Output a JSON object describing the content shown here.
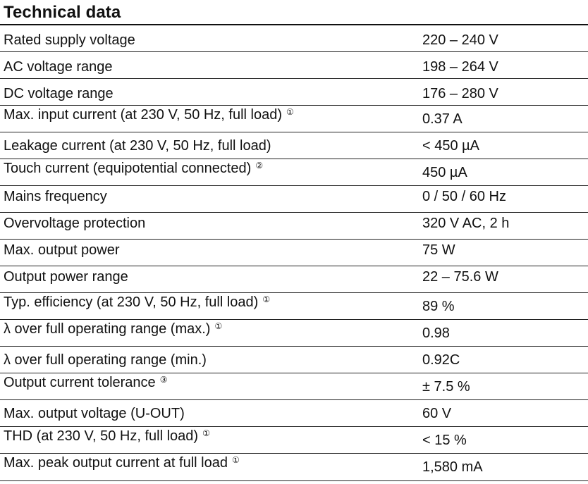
{
  "title": "Technical data",
  "rows": [
    {
      "label": "Rated supply voltage",
      "note": "",
      "value": "220 – 240 V"
    },
    {
      "label": "AC voltage range",
      "note": "",
      "value": "198 – 264 V"
    },
    {
      "label": "DC voltage range",
      "note": "",
      "value": "176 – 280 V"
    },
    {
      "label": "Max. input current (at 230 V, 50 Hz, full load)",
      "note": "①",
      "value": "0.37 A"
    },
    {
      "label": "Leakage current (at 230 V, 50 Hz, full load)",
      "note": "",
      "value": "< 450 µA"
    },
    {
      "label": "Touch current (equipotential connected)",
      "note": "②",
      "value": "450 µA"
    },
    {
      "label": "Mains frequency",
      "note": "",
      "value": "0 / 50 / 60 Hz"
    },
    {
      "label": "Overvoltage protection",
      "note": "",
      "value": "320 V AC, 2 h"
    },
    {
      "label": "Max. output power",
      "note": "",
      "value": "75 W"
    },
    {
      "label": "Output power range",
      "note": "",
      "value": "22 – 75.6 W"
    },
    {
      "label": "Typ. efficiency (at 230 V, 50 Hz, full load)",
      "note": "①",
      "value": "89 %"
    },
    {
      "label": "λ over full operating range (max.)",
      "note": "①",
      "value": "0.98"
    },
    {
      "label": "λ over full operating range (min.)",
      "note": "",
      "value": "0.92C"
    },
    {
      "label": "Output current tolerance",
      "note": "③",
      "value": "± 7.5 %"
    },
    {
      "label": "Max. output voltage (U-OUT)",
      "note": "",
      "value": "60 V"
    },
    {
      "label": "THD (at 230 V, 50 Hz, full load)",
      "note": "①",
      "value": "< 15 %"
    },
    {
      "label": "Max. peak output current at full load",
      "note": "①",
      "value": "1,580 mA"
    }
  ]
}
